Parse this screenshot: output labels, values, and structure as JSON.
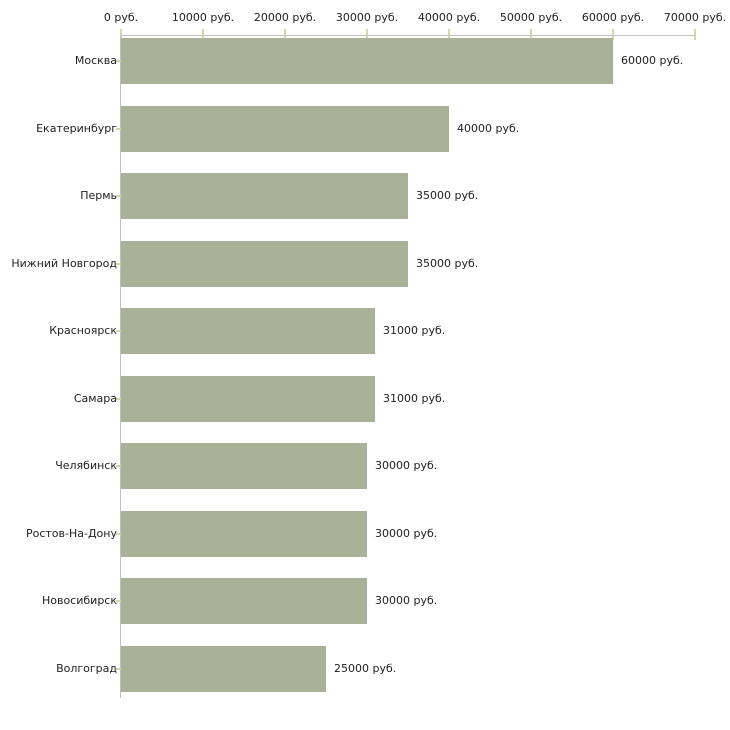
{
  "chart_data": {
    "type": "bar",
    "orientation": "horizontal",
    "title": "",
    "xlabel": "",
    "ylabel": "",
    "unit": "руб.",
    "categories": [
      "Москва",
      "Екатеринбург",
      "Пермь",
      "Нижний Новгород",
      "Красноярск",
      "Самара",
      "Челябинск",
      "Ростов-На-Дону",
      "Новосибирск",
      "Волгоград"
    ],
    "values": [
      60000,
      40000,
      35000,
      35000,
      31000,
      31000,
      30000,
      30000,
      30000,
      25000
    ],
    "value_labels": [
      "60000 руб.",
      "40000 руб.",
      "35000 руб.",
      "35000 руб.",
      "31000 руб.",
      "31000 руб.",
      "30000 руб.",
      "30000 руб.",
      "30000 руб.",
      "25000 руб."
    ],
    "x_ticks": [
      0,
      10000,
      20000,
      30000,
      40000,
      50000,
      60000,
      70000
    ],
    "x_tick_labels": [
      "0 руб.",
      "10000 руб.",
      "20000 руб.",
      "30000 руб.",
      "40000 руб.",
      "50000 руб.",
      "60000 руб.",
      "70000 руб."
    ],
    "xlim": [
      0,
      70000
    ],
    "grid": false,
    "legend": "none",
    "colors": {
      "bar": "#a9b199",
      "axis": "#c0c0c0",
      "tick": "#d6d6ad",
      "text": "#222222",
      "background": "#ffffff"
    }
  }
}
